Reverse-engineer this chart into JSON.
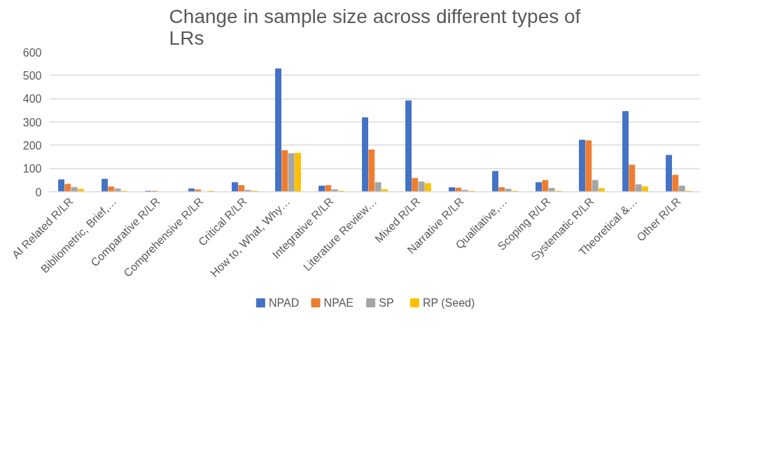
{
  "chart_data": {
    "type": "bar",
    "title": "Change in sample size across different types of LRs",
    "categories": [
      "AI Related R/LR",
      "Bibliometric, Brief,…",
      "Comparative R/LR",
      "Comprehensive R/LR",
      "Critical R/LR",
      "How to, What, Why…",
      "Integrative R/LR",
      "Literature Review…",
      "Mixed R/LR",
      "Narrative R/LR",
      "Qualitative,…",
      "Scoping R/LR",
      "Systematic R/LR",
      "Theoretical &…",
      "Other R/LR"
    ],
    "series": [
      {
        "name": "NPAD",
        "color": "#4472c4",
        "values": [
          52,
          54,
          3,
          13,
          40,
          528,
          25,
          318,
          391,
          18,
          88,
          40,
          222,
          345,
          157
        ]
      },
      {
        "name": "NPAE",
        "color": "#ed7d31",
        "values": [
          32,
          21,
          3,
          8,
          27,
          177,
          27,
          180,
          58,
          16,
          18,
          49,
          219,
          115,
          71
        ]
      },
      {
        "name": "SP",
        "color": "#a5a5a5",
        "values": [
          19,
          13,
          null,
          null,
          7,
          164,
          9,
          40,
          43,
          7,
          11,
          15,
          49,
          31,
          25
        ]
      },
      {
        "name": "RP (Seed)",
        "color": "#ffc000",
        "values": [
          11,
          3,
          null,
          3,
          3,
          166,
          3,
          10,
          35,
          3,
          3,
          3,
          14,
          22,
          3
        ]
      }
    ],
    "ylim": [
      0,
      600
    ],
    "yticks": [
      0,
      100,
      200,
      300,
      400,
      500,
      600
    ],
    "grid": "y",
    "legend": "bottom"
  }
}
